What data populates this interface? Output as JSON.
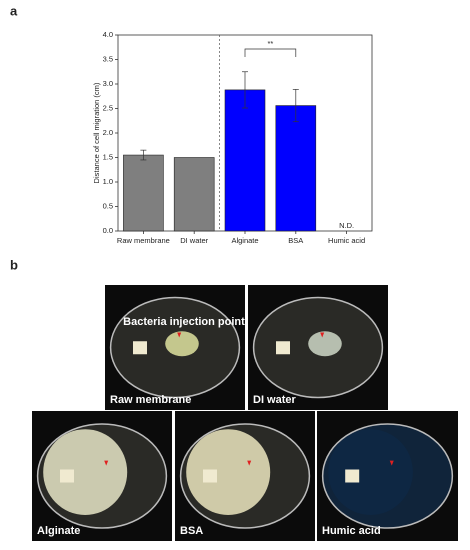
{
  "panel_labels": [
    "a",
    "b"
  ],
  "chart_data": {
    "type": "bar",
    "ylabel": "Distance of cell migration (cm)",
    "categories": [
      "Raw membrane",
      "DI water",
      "Alginate",
      "BSA",
      "Humic acid"
    ],
    "values": [
      1.55,
      1.5,
      2.88,
      2.56,
      null
    ],
    "errors": [
      0.1,
      null,
      0.37,
      0.33,
      null
    ],
    "value_labels": [
      null,
      null,
      null,
      null,
      "N.D."
    ],
    "colors": [
      "#7f7f7f",
      "#7f7f7f",
      "#0000ff",
      "#0000ff",
      null
    ],
    "ylim": [
      0,
      4
    ],
    "yticks": [
      {
        "value": 0,
        "label": "0.0"
      },
      0.5,
      {
        "value": 1,
        "label": "1.0"
      },
      1.5,
      {
        "value": 2,
        "label": "2.0"
      },
      2.5,
      {
        "value": 3,
        "label": "3.0"
      },
      3.5,
      {
        "value": 4,
        "label": "4.0"
      }
    ],
    "significance": {
      "label": "**",
      "categories": [
        "Alginate",
        "BSA"
      ]
    }
  },
  "photos": {
    "annotation": "Bacteria injection point",
    "labels": [
      "Raw membrane",
      "DI water",
      "Alginate",
      "BSA",
      "Humic acid"
    ]
  }
}
